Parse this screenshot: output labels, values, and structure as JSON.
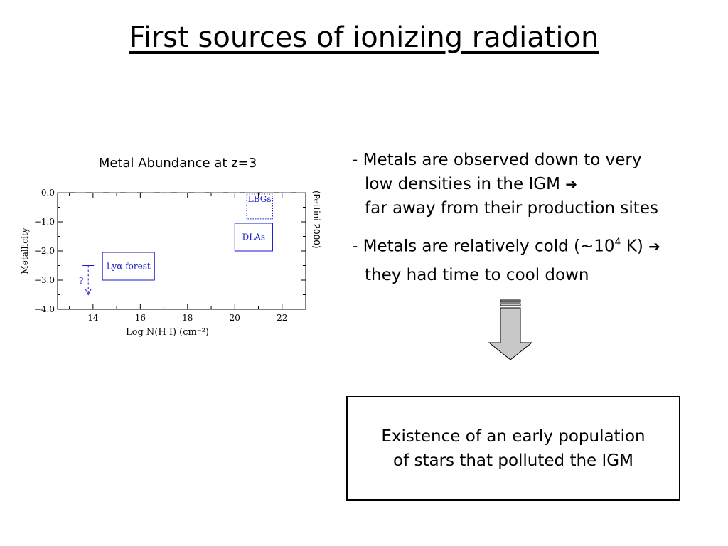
{
  "slide": {
    "title": "First sources of ionizing radiation"
  },
  "figure": {
    "plot_title": "Metal Abundance at z=3",
    "citation": "(Pettini 2000)"
  },
  "bullets": {
    "b1_line1": "- Metals are observed down to very",
    "b1_line2": "low densities in the IGM",
    "b1_line3": "far away from their production sites",
    "b2_line1_pre": "- Metals are relatively cold (~10",
    "b2_sup": "4",
    "b2_line1_post": " K)",
    "b2_line2": "they had time to cool down",
    "arrow": "➔"
  },
  "conclusion": {
    "line1": "Existence of an early population",
    "line2": "of stars that polluted the IGM"
  },
  "chart_data": {
    "type": "scatter",
    "xlabel": "Log N(H I) (cm⁻²)",
    "ylabel": "Metallicity",
    "xlim": [
      12.5,
      23
    ],
    "ylim": [
      -4.0,
      0.0
    ],
    "xticks": [
      "14",
      "16",
      "18",
      "20",
      "22"
    ],
    "yticks": [
      "0.0",
      "−1.0",
      "−2.0",
      "−3.0",
      "−4.0"
    ],
    "grid": false,
    "reference_line": {
      "y": 0.0,
      "style": "dashed",
      "color": "#888888"
    },
    "regions": [
      {
        "label": "Lyα forest",
        "x": [
          14.4,
          16.6
        ],
        "y": [
          -2.0,
          -3.0
        ],
        "border": "solid"
      },
      {
        "label": "DLAs",
        "x": [
          20.0,
          21.6
        ],
        "y": [
          -1.0,
          -2.0
        ],
        "border": "solid"
      },
      {
        "label": "LBGs",
        "x": [
          20.5,
          21.6
        ],
        "y": [
          0.0,
          -0.9
        ],
        "border": "dotted"
      }
    ],
    "limit_marker": {
      "label": "?",
      "x": 13.8,
      "y_top": -2.5,
      "y_bottom": -3.5
    },
    "accent_color": "#1a1acc"
  }
}
